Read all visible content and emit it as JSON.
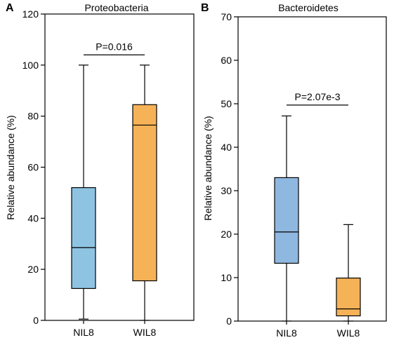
{
  "chart_data": [
    {
      "type": "box",
      "panel_label": "A",
      "title": "Proteobacteria",
      "ylabel": "Relative abundance (%)",
      "ylim": [
        0,
        120
      ],
      "yticks": [
        0,
        20,
        40,
        60,
        80,
        100,
        120
      ],
      "categories": [
        "NIL8",
        "WIL8"
      ],
      "boxes": [
        {
          "name": "NIL8",
          "min": 0.5,
          "q1": 12.5,
          "median": 28.5,
          "q3": 52,
          "max": 100,
          "color": "#8FC3E2"
        },
        {
          "name": "WIL8",
          "min": 0,
          "q1": 15.5,
          "median": 76.5,
          "q3": 84.5,
          "max": 100,
          "color": "#F6B257"
        }
      ],
      "annotation": {
        "text": "P=0.016",
        "y": 104
      }
    },
    {
      "type": "box",
      "panel_label": "B",
      "title": "Bacteroidetes",
      "ylabel": "Relative abundance (%)",
      "ylim": [
        0,
        70
      ],
      "yticks": [
        0,
        10,
        20,
        30,
        40,
        50,
        60,
        70
      ],
      "categories": [
        "NIL8",
        "WIL8"
      ],
      "boxes": [
        {
          "name": "NIL8",
          "min": 0,
          "q1": 13.3,
          "median": 20.5,
          "q3": 33,
          "max": 47.2,
          "color": "#8FB8E0"
        },
        {
          "name": "WIL8",
          "min": 0,
          "q1": 1.2,
          "median": 2.8,
          "q3": 9.9,
          "max": 22.2,
          "color": "#F6B257"
        }
      ],
      "annotation": {
        "text": "P=2.07e-3",
        "y": 49.7
      }
    }
  ]
}
